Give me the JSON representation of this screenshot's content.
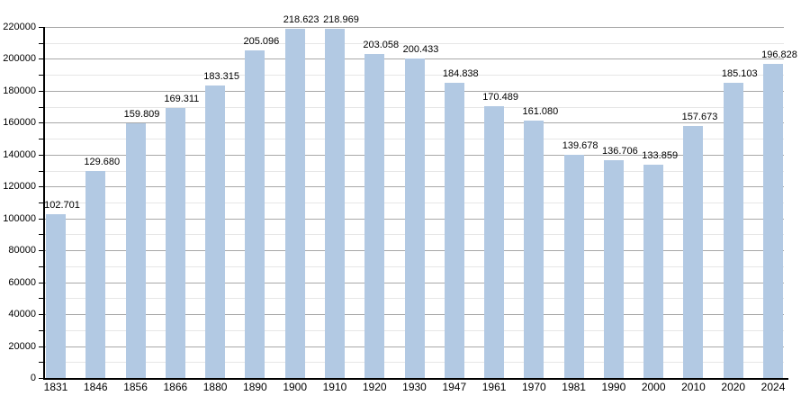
{
  "chart_data": {
    "type": "bar",
    "title": "",
    "xlabel": "",
    "ylabel": "",
    "categories": [
      "1831",
      "1846",
      "1856",
      "1866",
      "1880",
      "1890",
      "1900",
      "1910",
      "1920",
      "1930",
      "1947",
      "1961",
      "1970",
      "1981",
      "1990",
      "2000",
      "2010",
      "2020",
      "2024"
    ],
    "values": [
      102701,
      129680,
      159809,
      169311,
      183315,
      205096,
      218623,
      218969,
      203058,
      200433,
      184838,
      170489,
      161080,
      139678,
      136706,
      133859,
      157673,
      185103,
      196828
    ],
    "value_labels": [
      "102.701",
      "129.680",
      "159.809",
      "169.311",
      "183.315",
      "205.096",
      "218.623",
      "218.969",
      "203.058",
      "200.433",
      "184.838",
      "170.489",
      "161.080",
      "139.678",
      "136.706",
      "133.859",
      "157.673",
      "185.103",
      "196.828"
    ],
    "ylim": [
      0,
      220000
    ],
    "ytick_major": 20000,
    "ytick_minor": 10000,
    "ytick_labels": [
      "0",
      "20000",
      "40000",
      "60000",
      "80000",
      "100000",
      "120000",
      "140000",
      "160000",
      "180000",
      "200000",
      "220000"
    ],
    "grid": true,
    "legend": "none",
    "colors": {
      "bar": "#b2c9e3",
      "grid_major": "#a8a8a8",
      "grid_minor": "#e6e6e6",
      "axis": "#000000",
      "text": "#000000",
      "background": "#ffffff"
    }
  }
}
